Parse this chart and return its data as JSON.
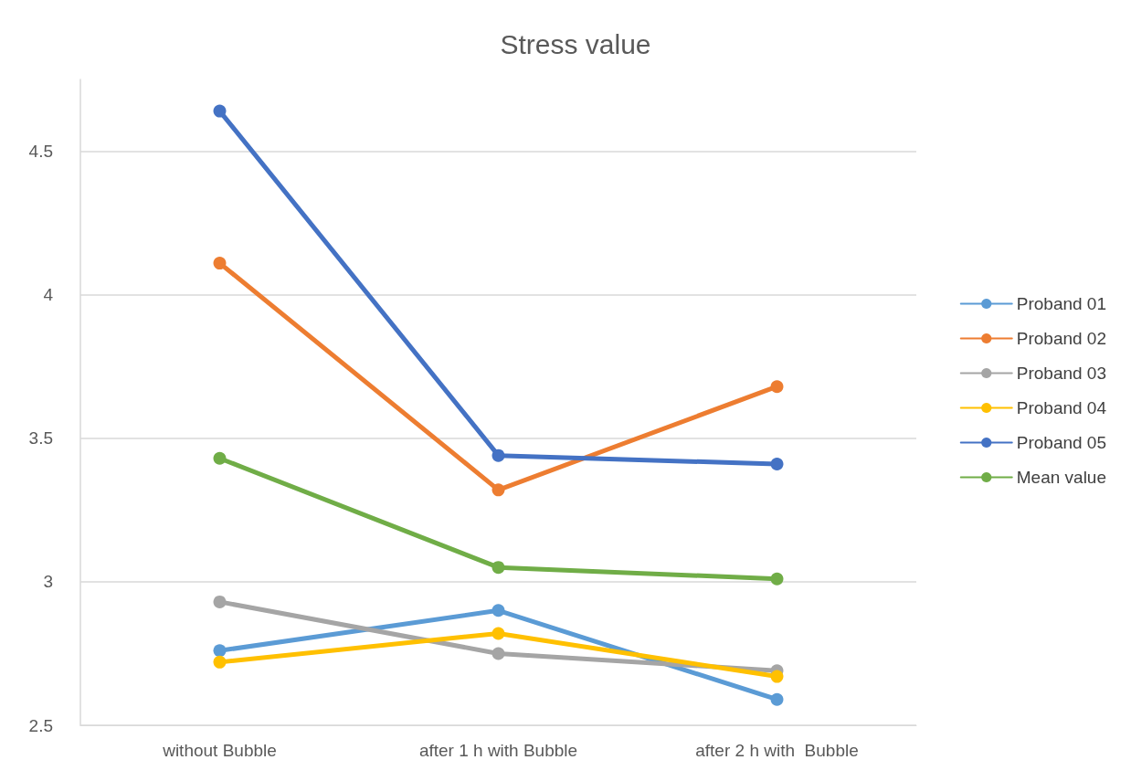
{
  "chart_data": {
    "type": "line",
    "title": "Stress value",
    "categories": [
      "without Bubble",
      "after 1 h with Bubble",
      "after 2 h with  Bubble"
    ],
    "series": [
      {
        "name": "Proband 01",
        "color": "#5b9bd5",
        "values": [
          2.76,
          2.9,
          2.59
        ]
      },
      {
        "name": "Proband 02",
        "color": "#ed7d31",
        "values": [
          4.11,
          3.32,
          3.68
        ]
      },
      {
        "name": "Proband 03",
        "color": "#a5a5a5",
        "values": [
          2.93,
          2.75,
          2.69
        ]
      },
      {
        "name": "Proband 04",
        "color": "#ffc000",
        "values": [
          2.72,
          2.82,
          2.67
        ]
      },
      {
        "name": "Proband 05",
        "color": "#4472c4",
        "values": [
          4.64,
          3.44,
          3.41
        ]
      },
      {
        "name": "Mean value",
        "color": "#70ad47",
        "values": [
          3.43,
          3.05,
          3.01
        ]
      }
    ],
    "ylim": [
      2.5,
      4.75
    ],
    "yticks": [
      2.5,
      3,
      3.5,
      4,
      4.5
    ],
    "grid": "y",
    "legend": "right",
    "marker": "circle",
    "line_style": "solid"
  }
}
